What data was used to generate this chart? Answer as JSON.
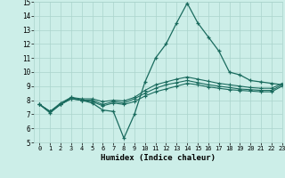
{
  "xlabel": "Humidex (Indice chaleur)",
  "xlim": [
    -0.5,
    23
  ],
  "ylim": [
    5,
    15
  ],
  "xticks": [
    0,
    1,
    2,
    3,
    4,
    5,
    6,
    7,
    8,
    9,
    10,
    11,
    12,
    13,
    14,
    15,
    16,
    17,
    18,
    19,
    20,
    21,
    22,
    23
  ],
  "yticks": [
    5,
    6,
    7,
    8,
    9,
    10,
    11,
    12,
    13,
    14,
    15
  ],
  "bg_color": "#cceee8",
  "line_color": "#1a6b5e",
  "grid_color": "#aad4cc",
  "line1_y": [
    7.7,
    7.1,
    7.7,
    8.2,
    8.0,
    7.8,
    7.3,
    7.2,
    5.3,
    7.0,
    9.3,
    11.0,
    12.0,
    13.5,
    14.9,
    13.5,
    12.5,
    11.5,
    10.0,
    9.8,
    9.4,
    9.3,
    9.2,
    9.1
  ],
  "line2_y": [
    7.7,
    7.2,
    7.7,
    8.1,
    8.0,
    7.9,
    7.6,
    7.8,
    7.7,
    7.9,
    8.3,
    8.6,
    8.8,
    9.0,
    9.2,
    9.1,
    8.95,
    8.85,
    8.75,
    8.7,
    8.65,
    8.6,
    8.6,
    9.0
  ],
  "line3_y": [
    7.7,
    7.2,
    7.7,
    8.1,
    8.0,
    8.0,
    7.7,
    7.9,
    7.8,
    8.1,
    8.5,
    8.85,
    9.1,
    9.25,
    9.4,
    9.25,
    9.1,
    9.0,
    8.9,
    8.8,
    8.75,
    8.7,
    8.7,
    9.1
  ],
  "line4_y": [
    7.7,
    7.2,
    7.8,
    8.2,
    8.1,
    8.1,
    7.9,
    8.0,
    7.95,
    8.2,
    8.7,
    9.1,
    9.3,
    9.5,
    9.65,
    9.5,
    9.35,
    9.2,
    9.1,
    9.0,
    8.9,
    8.85,
    8.85,
    9.2
  ]
}
